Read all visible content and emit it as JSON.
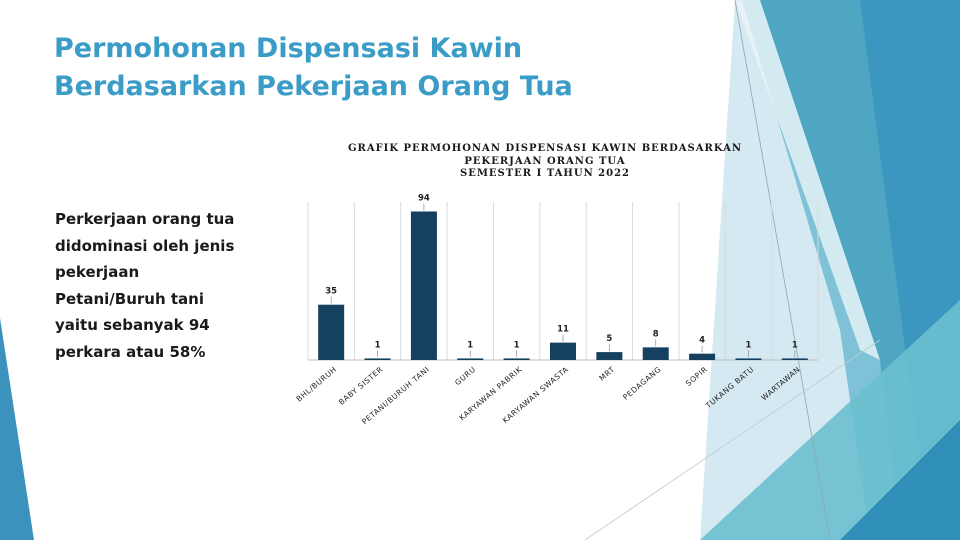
{
  "slide": {
    "title_lines": [
      "Permohonan Dispensasi Kawin",
      "Berdasarkan Pekerjaan Orang Tua"
    ],
    "description_lines": [
      "Perkerjaan orang tua",
      "didominasi oleh jenis",
      "pekerjaan",
      "Petani/Buruh tani",
      "yaitu sebanyak 94",
      "perkara atau 58%"
    ]
  },
  "colors": {
    "title": "#3a9cc7",
    "bar": "#15405f",
    "grid": "#d9d9d9",
    "deco_dark": "#2f88b4",
    "deco_mid": "#5fb2cf",
    "deco_light": "#cfe6ef"
  },
  "chart_data": {
    "type": "bar",
    "title_lines": [
      "GRAFIK PERMOHONAN DISPENSASI KAWIN BERDASARKAN",
      "PEKERJAAN ORANG TUA",
      "SEMESTER I TAHUN 2022"
    ],
    "categories": [
      "BHL/BURUH",
      "BABY SISTER",
      "PETANI/BURUH TANI",
      "GURU",
      "KARYAWAN PABRIK",
      "KARYAWAN SWASTA",
      "MRT",
      "PEDAGANG",
      "SOPIR",
      "TUKANG BATU",
      "WARTAWAN"
    ],
    "values": [
      35,
      1,
      94,
      1,
      1,
      11,
      5,
      8,
      4,
      1,
      1
    ],
    "data_labels": true,
    "ylim": [
      0,
      100
    ],
    "grid": "vertical",
    "legend": "none"
  }
}
